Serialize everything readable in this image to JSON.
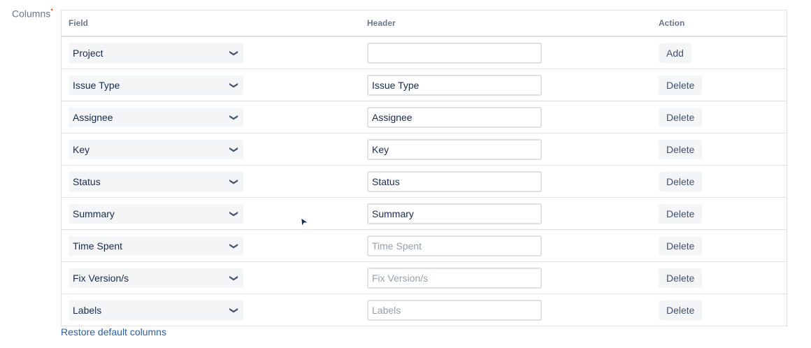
{
  "label": "Columns",
  "required_mark": "*",
  "headers": {
    "field": "Field",
    "header": "Header",
    "action": "Action"
  },
  "rows": [
    {
      "field": "Project",
      "header": "",
      "placeholder": "",
      "action": "Add"
    },
    {
      "field": "Issue Type",
      "header": "Issue Type",
      "placeholder": "",
      "action": "Delete"
    },
    {
      "field": "Assignee",
      "header": "Assignee",
      "placeholder": "",
      "action": "Delete"
    },
    {
      "field": "Key",
      "header": "Key",
      "placeholder": "",
      "action": "Delete"
    },
    {
      "field": "Status",
      "header": "Status",
      "placeholder": "",
      "action": "Delete"
    },
    {
      "field": "Summary",
      "header": "Summary",
      "placeholder": "",
      "action": "Delete"
    },
    {
      "field": "Time Spent",
      "header": "",
      "placeholder": "Time Spent",
      "action": "Delete"
    },
    {
      "field": "Fix Version/s",
      "header": "",
      "placeholder": "Fix Version/s",
      "action": "Delete"
    },
    {
      "field": "Labels",
      "header": "",
      "placeholder": "Labels",
      "action": "Delete"
    }
  ],
  "restore_link": "Restore default columns"
}
